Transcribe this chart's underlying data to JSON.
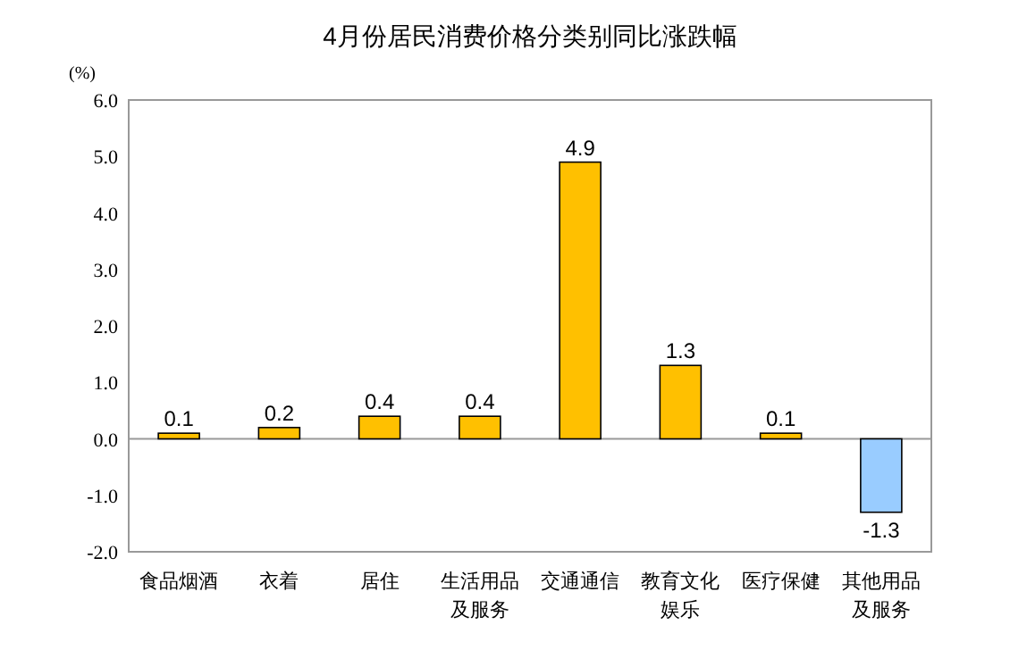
{
  "chart_data": {
    "type": "bar",
    "title": "4月份居民消费价格分类别同比涨跌幅",
    "ylabel": "(%)",
    "categories": [
      "食品烟酒",
      "衣着",
      "居住",
      "生活用品及服务",
      "交通通信",
      "教育文化娱乐",
      "医疗保健",
      "其他用品及服务"
    ],
    "values": [
      0.1,
      0.2,
      0.4,
      0.4,
      4.9,
      1.3,
      0.1,
      -1.3
    ],
    "colors": [
      "#ffc000",
      "#ffc000",
      "#ffc000",
      "#ffc000",
      "#ffc000",
      "#ffc000",
      "#ffc000",
      "#99ccff"
    ],
    "data_labels": true,
    "ylim": [
      -2,
      6
    ],
    "yticks": [
      {
        "value": -2,
        "label": "-2.0"
      },
      {
        "value": -1,
        "label": "-1.0"
      },
      {
        "value": 0,
        "label": "0.0"
      },
      {
        "value": 1,
        "label": "1.0"
      },
      {
        "value": 2,
        "label": "2.0"
      },
      {
        "value": 3,
        "label": "3.0"
      },
      {
        "value": 4,
        "label": "4.0"
      },
      {
        "value": 5,
        "label": "5.0"
      },
      {
        "value": 6,
        "label": "6.0"
      }
    ]
  }
}
